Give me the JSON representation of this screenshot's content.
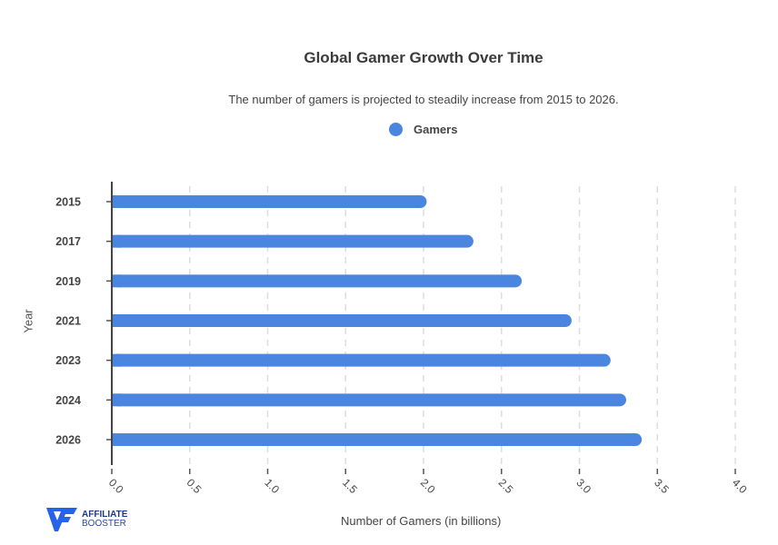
{
  "header": {
    "title": "Global Gamer Growth Over Time",
    "subtitle": "The number of gamers is projected to steadily increase from 2015 to 2026."
  },
  "legend": {
    "label": "Gamers",
    "color": "#4a86e0"
  },
  "axes": {
    "ylabel": "Year",
    "xlabel": "Number of Gamers (in billions)"
  },
  "branding": {
    "line1": "AFFILIATE",
    "line2": "BOOSTER",
    "color": "#2563eb"
  },
  "chart_data": {
    "type": "bar",
    "orientation": "horizontal",
    "title": "Global Gamer Growth Over Time",
    "subtitle": "The number of gamers is projected to steadily increase from 2015 to 2026.",
    "xlabel": "Number of Gamers (in billions)",
    "ylabel": "Year",
    "categories": [
      "2015",
      "2017",
      "2019",
      "2021",
      "2023",
      "2024",
      "2026"
    ],
    "series": [
      {
        "name": "Gamers",
        "color": "#4a86e0",
        "values": [
          2.02,
          2.32,
          2.63,
          2.95,
          3.2,
          3.3,
          3.4
        ]
      }
    ],
    "xlim": [
      0,
      4.0
    ],
    "xticks": [
      "0.0",
      "0.5",
      "1.0",
      "1.5",
      "2.0",
      "2.5",
      "3.0",
      "3.5",
      "4.0"
    ],
    "grid": "vertical dashed",
    "legend_position": "top"
  }
}
